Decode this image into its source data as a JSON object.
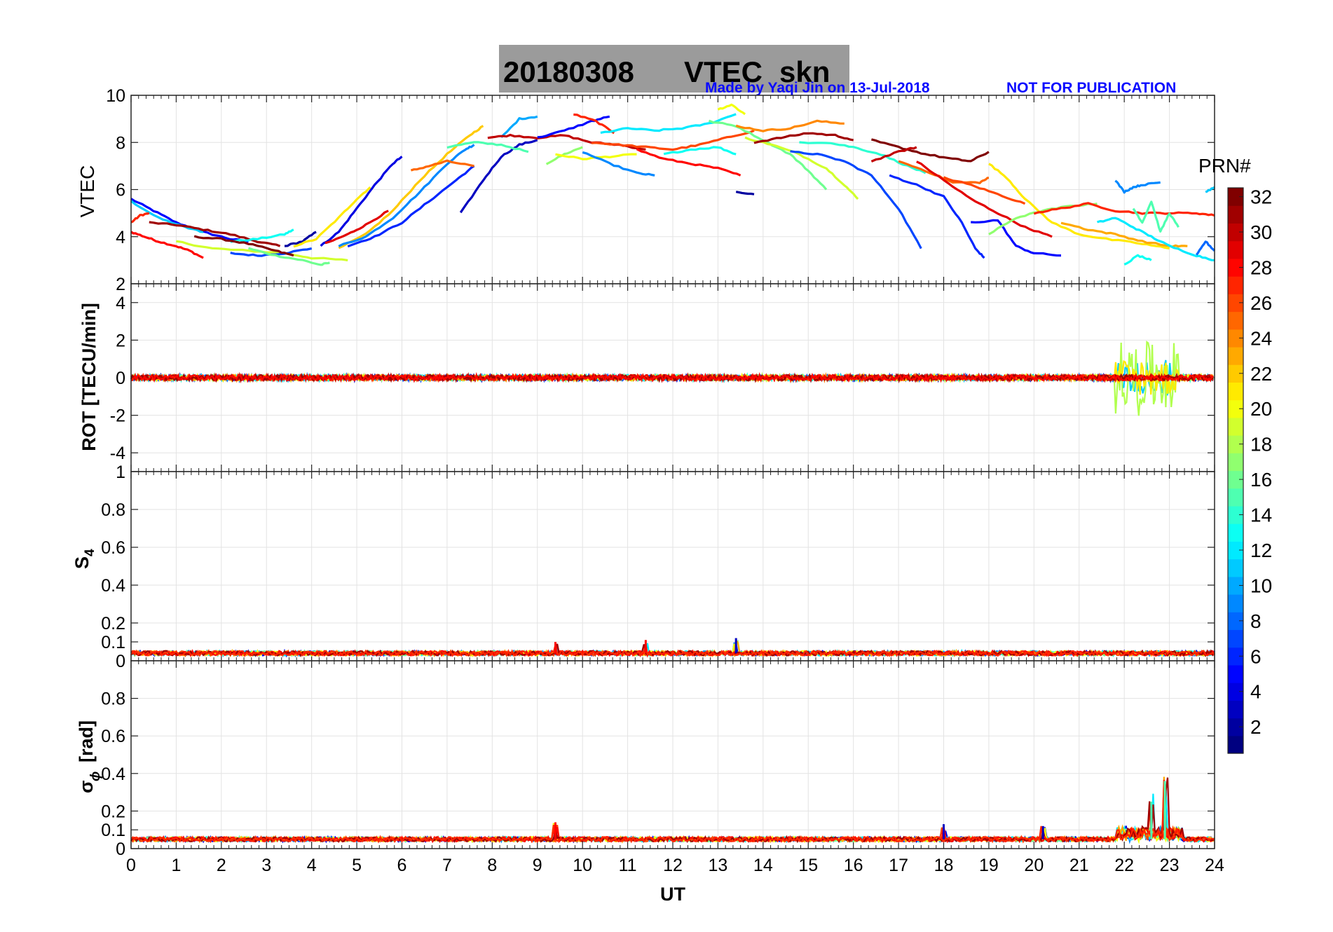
{
  "title": {
    "date": "20180308",
    "quantity": "VTEC",
    "station": "skn",
    "credit": "Made by Yaqi Jin on 13-Jul-2018",
    "notice": "NOT FOR PUBLICATION"
  },
  "colors": {
    "title_box": "#9b9b9b",
    "credit": "#0a0aff",
    "grid": "#e6e6e6"
  },
  "colorbar": {
    "label": "PRN#",
    "min": 1,
    "max": 32,
    "ticks": [
      "2",
      "4",
      "6",
      "8",
      "10",
      "12",
      "14",
      "16",
      "18",
      "20",
      "22",
      "24",
      "26",
      "28",
      "30",
      "32"
    ]
  },
  "chart_data": [
    {
      "id": "vtec",
      "type": "line",
      "ylabel": "VTEC",
      "ylim": [
        2,
        10
      ],
      "yticks": [
        "2",
        "4",
        "6",
        "8",
        "10"
      ],
      "xlim": [
        0,
        24
      ],
      "series": [
        {
          "prn": 5,
          "x": [
            0,
            0.5,
            1,
            1.6,
            2.2,
            2.6
          ],
          "y": [
            5.6,
            5.1,
            4.6,
            4.2,
            3.9,
            3.8
          ]
        },
        {
          "prn": 11,
          "x": [
            0,
            0.6,
            1.2,
            1.6
          ],
          "y": [
            5.5,
            4.8,
            4.4,
            4.2
          ]
        },
        {
          "prn": 28,
          "x": [
            0,
            0.3,
            0.6,
            1.0,
            1.3,
            1.6
          ],
          "y": [
            4.2,
            4.0,
            3.8,
            3.6,
            3.4,
            3.1
          ]
        },
        {
          "prn": 27,
          "x": [
            0,
            0.2,
            0.4
          ],
          "y": [
            4.6,
            4.9,
            5.0
          ]
        },
        {
          "prn": 31,
          "x": [
            0.4,
            1.0,
            1.6,
            2.2,
            2.8,
            3.3
          ],
          "y": [
            4.6,
            4.5,
            4.3,
            4.1,
            3.8,
            3.6
          ]
        },
        {
          "prn": 19,
          "x": [
            1.0,
            1.8,
            2.6,
            3.4,
            4.0,
            4.8
          ],
          "y": [
            3.8,
            3.5,
            3.4,
            3.3,
            3.1,
            3.0
          ]
        },
        {
          "prn": 7,
          "x": [
            2.2,
            2.8,
            3.4,
            4.0
          ],
          "y": [
            3.3,
            3.2,
            3.3,
            3.5
          ]
        },
        {
          "prn": 13,
          "x": [
            2.2,
            2.8,
            3.4,
            3.6
          ],
          "y": [
            3.8,
            3.9,
            4.1,
            4.3
          ]
        },
        {
          "prn": 16,
          "x": [
            2.6,
            3.2,
            3.8,
            4.2,
            4.4
          ],
          "y": [
            3.5,
            3.2,
            3.0,
            2.8,
            2.9
          ]
        },
        {
          "prn": 32,
          "x": [
            1.4,
            2.0,
            2.6,
            3.2,
            3.6
          ],
          "y": [
            4.0,
            3.9,
            3.7,
            3.4,
            3.2
          ]
        },
        {
          "prn": 2,
          "x": [
            3.4,
            3.8,
            4.1
          ],
          "y": [
            3.6,
            3.8,
            4.2
          ]
        },
        {
          "prn": 21,
          "x": [
            3.6,
            4.1,
            4.6,
            5.0,
            5.3
          ],
          "y": [
            3.6,
            3.9,
            4.8,
            5.6,
            6.1
          ]
        },
        {
          "prn": 4,
          "x": [
            4.2,
            4.6,
            5.0,
            5.4,
            5.8,
            6.0
          ],
          "y": [
            3.6,
            4.2,
            5.2,
            6.2,
            7.1,
            7.4
          ]
        },
        {
          "prn": 29,
          "x": [
            4.3,
            4.8,
            5.2,
            5.7
          ],
          "y": [
            3.7,
            4.1,
            4.5,
            5.1
          ]
        },
        {
          "prn": 22,
          "x": [
            4.6,
            5.2,
            5.8,
            6.4,
            7.0,
            7.5,
            7.8
          ],
          "y": [
            3.5,
            4.1,
            5.1,
            6.4,
            7.5,
            8.3,
            8.7
          ]
        },
        {
          "prn": 9,
          "x": [
            4.6,
            5.2,
            5.8,
            6.4,
            7.0,
            7.4,
            7.6
          ],
          "y": [
            3.6,
            4.0,
            4.8,
            5.9,
            7.1,
            7.7,
            7.9
          ]
        },
        {
          "prn": 6,
          "x": [
            4.8,
            5.4,
            6.0,
            6.6,
            7.2,
            7.6
          ],
          "y": [
            3.6,
            4.0,
            4.6,
            5.5,
            6.4,
            7.0
          ]
        },
        {
          "prn": 25,
          "x": [
            6.2,
            6.6,
            7.0,
            7.6
          ],
          "y": [
            6.8,
            7.0,
            7.2,
            7.0
          ]
        },
        {
          "prn": 3,
          "x": [
            7.3,
            7.8,
            8.2,
            8.6,
            9.0
          ],
          "y": [
            5.0,
            6.4,
            7.4,
            7.9,
            8.1
          ]
        },
        {
          "prn": 15,
          "x": [
            7.0,
            7.6,
            8.2,
            8.8
          ],
          "y": [
            7.8,
            8.0,
            7.9,
            7.6
          ]
        },
        {
          "prn": 10,
          "x": [
            8.2,
            8.6,
            9.0
          ],
          "y": [
            8.2,
            9.0,
            9.1
          ]
        },
        {
          "prn": 30,
          "x": [
            7.9,
            8.4,
            9.0,
            9.6,
            10.2,
            10.8,
            11.4
          ],
          "y": [
            8.2,
            8.3,
            8.2,
            8.3,
            8.0,
            7.9,
            7.7
          ]
        },
        {
          "prn": 5,
          "x": [
            9.0,
            9.6,
            10.2,
            10.6
          ],
          "y": [
            8.2,
            8.5,
            8.9,
            9.1
          ]
        },
        {
          "prn": 27,
          "x": [
            9.8,
            10.3,
            10.7
          ],
          "y": [
            9.2,
            8.9,
            8.4
          ]
        },
        {
          "prn": 17,
          "x": [
            9.2,
            9.6,
            10.0
          ],
          "y": [
            7.1,
            7.5,
            7.8
          ]
        },
        {
          "prn": 20,
          "x": [
            9.4,
            10.0,
            10.6,
            11.2
          ],
          "y": [
            7.5,
            7.3,
            7.4,
            7.5
          ]
        },
        {
          "prn": 9,
          "x": [
            10.0,
            10.6,
            11.2,
            11.6
          ],
          "y": [
            7.6,
            7.1,
            6.7,
            6.6
          ]
        },
        {
          "prn": 12,
          "x": [
            10.4,
            11.0,
            11.6,
            12.2,
            12.8,
            13.4
          ],
          "y": [
            8.4,
            8.6,
            8.5,
            8.6,
            8.8,
            9.2
          ]
        },
        {
          "prn": 26,
          "x": [
            10.2,
            10.8,
            11.4,
            12.0,
            12.6,
            13.2,
            13.8
          ],
          "y": [
            8.0,
            7.9,
            7.8,
            7.7,
            7.9,
            8.2,
            8.5
          ]
        },
        {
          "prn": 28,
          "x": [
            11.2,
            11.8,
            12.4,
            13.0,
            13.5
          ],
          "y": [
            7.7,
            7.3,
            7.1,
            6.9,
            6.6
          ]
        },
        {
          "prn": 13,
          "x": [
            11.8,
            12.4,
            13.0,
            13.4
          ],
          "y": [
            7.5,
            7.7,
            7.8,
            7.5
          ]
        },
        {
          "prn": 20,
          "x": [
            13.0,
            13.3,
            13.6
          ],
          "y": [
            9.4,
            9.6,
            9.2
          ]
        },
        {
          "prn": 2,
          "x": [
            13.4,
            13.8
          ],
          "y": [
            5.9,
            5.8
          ]
        },
        {
          "prn": 16,
          "x": [
            12.8,
            13.4,
            14.0,
            14.6,
            15.0,
            15.4
          ],
          "y": [
            8.9,
            8.7,
            8.1,
            7.5,
            6.8,
            6.0
          ]
        },
        {
          "prn": 19,
          "x": [
            13.6,
            14.2,
            14.8,
            15.4,
            15.8,
            16.1
          ],
          "y": [
            8.2,
            7.9,
            7.5,
            6.9,
            6.2,
            5.6
          ]
        },
        {
          "prn": 24,
          "x": [
            13.4,
            14.0,
            14.6,
            15.2,
            15.8
          ],
          "y": [
            8.7,
            8.5,
            8.6,
            8.9,
            8.8
          ]
        },
        {
          "prn": 31,
          "x": [
            13.8,
            14.4,
            15.0,
            15.6,
            16.0
          ],
          "y": [
            8.0,
            8.2,
            8.4,
            8.3,
            8.1
          ]
        },
        {
          "prn": 7,
          "x": [
            14.6,
            15.2,
            15.8,
            16.4,
            17.0,
            17.5
          ],
          "y": [
            7.6,
            7.5,
            7.2,
            6.6,
            5.2,
            3.5
          ]
        },
        {
          "prn": 14,
          "x": [
            14.8,
            15.4,
            16.0,
            16.6,
            17.2,
            17.6
          ],
          "y": [
            8.0,
            8.0,
            7.8,
            7.5,
            7.0,
            6.7
          ]
        },
        {
          "prn": 32,
          "x": [
            16.4,
            17.0,
            17.6,
            18.2,
            18.6,
            19.0
          ],
          "y": [
            8.1,
            7.8,
            7.5,
            7.3,
            7.2,
            7.6
          ]
        },
        {
          "prn": 30,
          "x": [
            16.4,
            17.0,
            17.4
          ],
          "y": [
            7.2,
            7.6,
            7.8
          ]
        },
        {
          "prn": 25,
          "x": [
            17.0,
            17.6,
            18.2,
            18.8,
            19.0
          ],
          "y": [
            7.2,
            6.8,
            6.3,
            6.3,
            6.5
          ]
        },
        {
          "prn": 6,
          "x": [
            16.8,
            17.4,
            18.0,
            18.4,
            18.7,
            18.9
          ],
          "y": [
            6.6,
            6.2,
            5.7,
            4.6,
            3.5,
            3.1
          ]
        },
        {
          "prn": 29,
          "x": [
            17.4,
            18.0,
            18.6,
            19.2,
            19.8,
            20.4
          ],
          "y": [
            7.2,
            6.4,
            5.6,
            5.0,
            4.4,
            4.0
          ]
        },
        {
          "prn": 26,
          "x": [
            18.0,
            18.6,
            19.2,
            19.8
          ],
          "y": [
            6.5,
            6.2,
            5.8,
            5.4
          ]
        },
        {
          "prn": 21,
          "x": [
            19.0,
            19.4,
            19.8,
            20.4,
            21.0,
            21.6,
            22.4,
            23.0
          ],
          "y": [
            7.1,
            6.5,
            5.6,
            4.6,
            4.1,
            3.9,
            3.7,
            3.5
          ]
        },
        {
          "prn": 5,
          "x": [
            18.6,
            19.2,
            19.6,
            20.0,
            20.6
          ],
          "y": [
            4.6,
            4.7,
            3.6,
            3.3,
            3.2
          ]
        },
        {
          "prn": 17,
          "x": [
            19.0,
            19.6,
            20.2,
            20.8,
            21.4
          ],
          "y": [
            4.1,
            4.8,
            5.1,
            5.3,
            5.4
          ]
        },
        {
          "prn": 27,
          "x": [
            20.0,
            20.6,
            21.2,
            21.8,
            22.4,
            23.0,
            23.6,
            24.0
          ],
          "y": [
            5.0,
            5.2,
            5.4,
            5.1,
            5.0,
            5.0,
            5.0,
            4.9
          ]
        },
        {
          "prn": 23,
          "x": [
            20.6,
            21.2,
            21.8,
            22.4,
            23.0,
            23.4
          ],
          "y": [
            4.6,
            4.3,
            4.1,
            3.8,
            3.6,
            3.6
          ]
        },
        {
          "prn": 12,
          "x": [
            21.4,
            21.8,
            22.2,
            22.6,
            23.0,
            23.6,
            24.0
          ],
          "y": [
            4.6,
            4.8,
            4.4,
            4.0,
            3.6,
            3.2,
            3.0
          ]
        },
        {
          "prn": 9,
          "x": [
            21.8,
            22.0,
            22.2,
            22.4,
            22.8
          ],
          "y": [
            6.4,
            5.9,
            6.1,
            6.2,
            6.3
          ]
        },
        {
          "prn": 15,
          "x": [
            22.2,
            22.4,
            22.6,
            22.8,
            23.0,
            23.2
          ],
          "y": [
            5.2,
            4.6,
            5.5,
            4.2,
            5.0,
            4.4
          ]
        },
        {
          "prn": 13,
          "x": [
            22.0,
            22.3,
            22.6
          ],
          "y": [
            2.8,
            3.2,
            3.0
          ]
        },
        {
          "prn": 8,
          "x": [
            23.6,
            23.8,
            24.0
          ],
          "y": [
            3.2,
            3.8,
            3.4
          ]
        },
        {
          "prn": 11,
          "x": [
            23.8,
            24.0
          ],
          "y": [
            5.9,
            6.1
          ]
        }
      ]
    },
    {
      "id": "rot",
      "type": "line",
      "ylabel": "ROT [TECU/min]",
      "ylim": [
        -5,
        5
      ],
      "yticks": [
        "-4",
        "-2",
        "0",
        "2",
        "4"
      ],
      "xlim": [
        0,
        24
      ],
      "noise_amplitude": 0.15,
      "burst_window": [
        21.8,
        23.2
      ],
      "burst_amplitude": 1.9
    },
    {
      "id": "s4",
      "type": "line",
      "ylabel": "S4",
      "ylim": [
        0,
        1
      ],
      "yticks": [
        "0",
        "0.1",
        "0.2",
        "0.4",
        "0.6",
        "0.8",
        "1"
      ],
      "xlim": [
        0,
        24
      ],
      "baseline": 0.04,
      "spikes": [
        {
          "x": 9.4,
          "y": 0.1
        },
        {
          "x": 11.4,
          "y": 0.11
        },
        {
          "x": 13.4,
          "y": 0.12
        }
      ]
    },
    {
      "id": "sigma_phi",
      "type": "line",
      "ylabel": "σ",
      "ylabel_sub": "ϕ",
      "ylabel_unit": "[rad]",
      "ylim": [
        0,
        1
      ],
      "yticks": [
        "0",
        "0.1",
        "0.2",
        "0.4",
        "0.6",
        "0.8"
      ],
      "xlim": [
        0,
        24
      ],
      "xlabel": "UT",
      "xticks": [
        "0",
        "1",
        "2",
        "3",
        "4",
        "5",
        "6",
        "7",
        "8",
        "9",
        "10",
        "11",
        "12",
        "13",
        "14",
        "15",
        "16",
        "17",
        "18",
        "19",
        "20",
        "21",
        "22",
        "23",
        "24"
      ],
      "baseline": 0.05,
      "spikes": [
        {
          "x": 9.4,
          "y": 0.14
        },
        {
          "x": 18.0,
          "y": 0.13
        },
        {
          "x": 20.2,
          "y": 0.12
        },
        {
          "x": 22.6,
          "y": 0.25
        },
        {
          "x": 22.9,
          "y": 0.36
        }
      ]
    }
  ]
}
